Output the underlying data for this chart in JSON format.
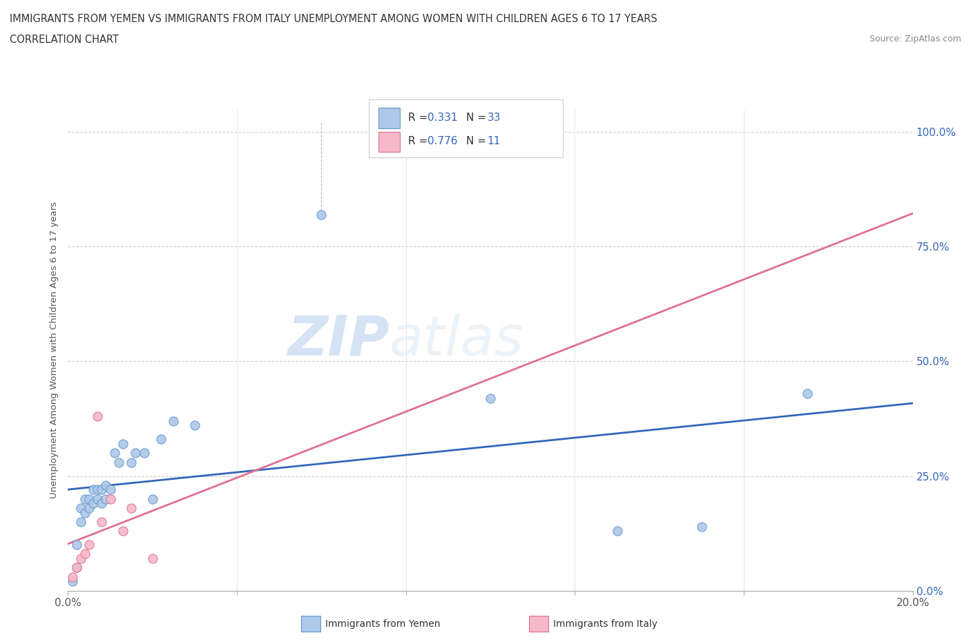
{
  "title_line1": "IMMIGRANTS FROM YEMEN VS IMMIGRANTS FROM ITALY UNEMPLOYMENT AMONG WOMEN WITH CHILDREN AGES 6 TO 17 YEARS",
  "title_line2": "CORRELATION CHART",
  "source": "Source: ZipAtlas.com",
  "xlim": [
    0.0,
    0.2
  ],
  "ylim": [
    0.0,
    1.05
  ],
  "watermark_zip": "ZIP",
  "watermark_atlas": "atlas",
  "yemen_color": "#adc8e8",
  "yemen_color_dark": "#6699cc",
  "italy_color": "#f5b8c8",
  "italy_color_dark": "#e07090",
  "trend_yemen_color": "#3366bb",
  "trend_italy_color": "#e07090",
  "R_yemen": 0.331,
  "N_yemen": 33,
  "R_italy": 0.776,
  "N_italy": 11,
  "yemen_x": [
    0.001,
    0.002,
    0.002,
    0.003,
    0.003,
    0.004,
    0.004,
    0.005,
    0.005,
    0.006,
    0.006,
    0.007,
    0.007,
    0.008,
    0.008,
    0.009,
    0.009,
    0.01,
    0.011,
    0.012,
    0.013,
    0.015,
    0.016,
    0.018,
    0.02,
    0.022,
    0.025,
    0.03,
    0.06,
    0.1,
    0.13,
    0.15,
    0.175
  ],
  "yemen_y": [
    0.02,
    0.05,
    0.1,
    0.15,
    0.18,
    0.17,
    0.2,
    0.18,
    0.2,
    0.19,
    0.22,
    0.2,
    0.22,
    0.19,
    0.22,
    0.2,
    0.23,
    0.22,
    0.3,
    0.28,
    0.32,
    0.28,
    0.3,
    0.3,
    0.2,
    0.33,
    0.37,
    0.36,
    0.82,
    0.42,
    0.13,
    0.14,
    0.43
  ],
  "italy_x": [
    0.001,
    0.002,
    0.003,
    0.004,
    0.005,
    0.007,
    0.008,
    0.01,
    0.013,
    0.015,
    0.02
  ],
  "italy_y": [
    0.03,
    0.05,
    0.07,
    0.08,
    0.1,
    0.38,
    0.15,
    0.2,
    0.13,
    0.18,
    0.07
  ],
  "ytick_vals": [
    0.0,
    0.25,
    0.5,
    0.75,
    1.0
  ],
  "ytick_labels": [
    "0.0%",
    "25.0%",
    "50.0%",
    "75.0%",
    "100.0%"
  ],
  "xtick_vals": [
    0.0,
    0.2
  ],
  "xtick_labels": [
    "0.0%",
    "20.0%"
  ]
}
